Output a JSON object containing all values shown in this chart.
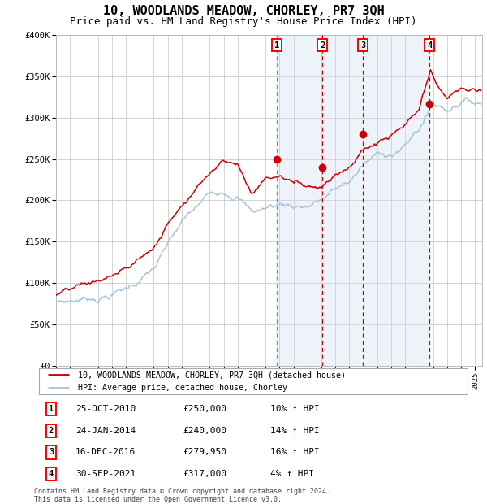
{
  "title": "10, WOODLANDS MEADOW, CHORLEY, PR7 3QH",
  "subtitle": "Price paid vs. HM Land Registry's House Price Index (HPI)",
  "title_fontsize": 11,
  "subtitle_fontsize": 9,
  "ylim": [
    0,
    400000
  ],
  "yticks": [
    0,
    50000,
    100000,
    150000,
    200000,
    250000,
    300000,
    350000,
    400000
  ],
  "ytick_labels": [
    "£0",
    "£50K",
    "£100K",
    "£150K",
    "£200K",
    "£250K",
    "£300K",
    "£350K",
    "£400K"
  ],
  "xlim_start": 1995.0,
  "xlim_end": 2025.5,
  "background_color": "#ffffff",
  "plot_bg_color": "#ffffff",
  "grid_color": "#cccccc",
  "hpi_line_color": "#aac4dd",
  "price_line_color": "#cc0000",
  "sale_marker_color": "#cc0000",
  "sale_vline_colors": [
    "#888888",
    "#cc0000",
    "#cc0000",
    "#cc0000"
  ],
  "shade_color": "#ccddf0",
  "sales": [
    {
      "date": 2010.82,
      "price": 250000,
      "label": "1"
    },
    {
      "date": 2014.07,
      "price": 240000,
      "label": "2"
    },
    {
      "date": 2016.96,
      "price": 279950,
      "label": "3"
    },
    {
      "date": 2021.75,
      "price": 317000,
      "label": "4"
    }
  ],
  "sale_table": [
    {
      "num": "1",
      "date": "25-OCT-2010",
      "price": "£250,000",
      "change": "10% ↑ HPI"
    },
    {
      "num": "2",
      "date": "24-JAN-2014",
      "price": "£240,000",
      "change": "14% ↑ HPI"
    },
    {
      "num": "3",
      "date": "16-DEC-2016",
      "price": "£279,950",
      "change": "16% ↑ HPI"
    },
    {
      "num": "4",
      "date": "30-SEP-2021",
      "price": "£317,000",
      "change": "4% ↑ HPI"
    }
  ],
  "legend_labels": [
    "10, WOODLANDS MEADOW, CHORLEY, PR7 3QH (detached house)",
    "HPI: Average price, detached house, Chorley"
  ],
  "footer": "Contains HM Land Registry data © Crown copyright and database right 2024.\nThis data is licensed under the Open Government Licence v3.0."
}
